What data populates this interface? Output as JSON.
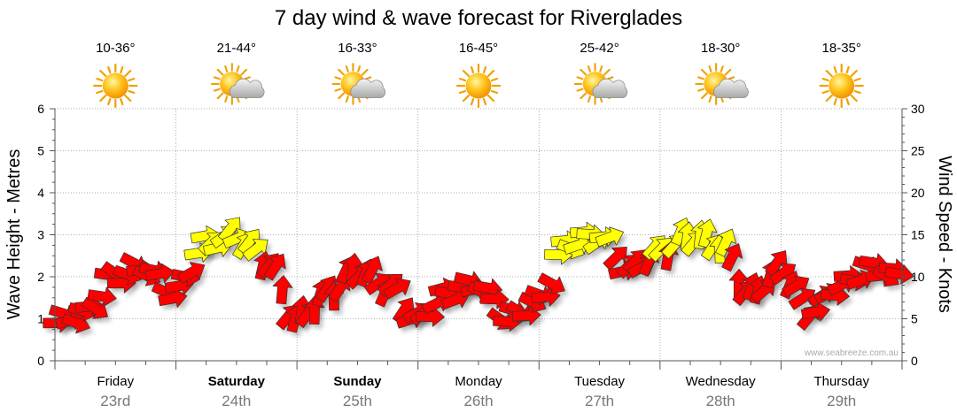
{
  "chart_data": {
    "type": "line",
    "title": "7 day wind & wave forecast for Riverglades",
    "ylabel_left": "Wave Height - Metres",
    "ylabel_right": "Wind Speed - Knots",
    "ylim_left": [
      0,
      6
    ],
    "ylim_right": [
      0,
      30
    ],
    "yticks_left": [
      "0",
      "1",
      "2",
      "3",
      "4",
      "5",
      "6"
    ],
    "yticks_right": [
      "0",
      "5",
      "10",
      "15",
      "20",
      "25",
      "30"
    ],
    "watermark": "www.seabreeze.com.au",
    "days": [
      {
        "name": "Friday",
        "date": "23rd",
        "bold": false,
        "temp": "10-36°",
        "icon": "sun-icon"
      },
      {
        "name": "Saturday",
        "date": "24th",
        "bold": true,
        "temp": "21-44°",
        "icon": "sun-cloud-icon"
      },
      {
        "name": "Sunday",
        "date": "25th",
        "bold": true,
        "temp": "16-33°",
        "icon": "sun-cloud-icon"
      },
      {
        "name": "Monday",
        "date": "26th",
        "bold": false,
        "temp": "16-45°",
        "icon": "sun-icon"
      },
      {
        "name": "Tuesday",
        "date": "27th",
        "bold": false,
        "temp": "25-42°",
        "icon": "sun-cloud-icon"
      },
      {
        "name": "Wednesday",
        "date": "28th",
        "bold": false,
        "temp": "18-30°",
        "icon": "sun-cloud-icon"
      },
      {
        "name": "Thursday",
        "date": "29th",
        "bold": false,
        "temp": "18-35°",
        "icon": "sun-icon"
      }
    ],
    "wind_series": {
      "name": "Wind speed (knots)",
      "time_days": [
        0.0,
        0.25,
        0.5,
        0.75,
        1.0,
        1.25,
        1.5,
        1.75,
        2.0,
        2.25,
        2.5,
        2.75,
        3.0,
        3.25,
        3.5,
        3.75,
        4.0,
        4.25,
        4.5,
        4.75,
        5.0,
        5.25,
        5.5,
        5.75,
        6.0,
        6.25,
        6.5,
        6.75,
        7.0
      ],
      "values": [
        4.5,
        5.5,
        10,
        11,
        8,
        14,
        15,
        12,
        5,
        8,
        11,
        9,
        5,
        8,
        9,
        5,
        7,
        14,
        15,
        11,
        13,
        15,
        14,
        8,
        11,
        6,
        9,
        11,
        10
      ]
    },
    "colors": {
      "high": "#ffff00",
      "low": "#ff0000",
      "edge": "#333333",
      "grid": "#999999",
      "axis": "#555555"
    }
  }
}
